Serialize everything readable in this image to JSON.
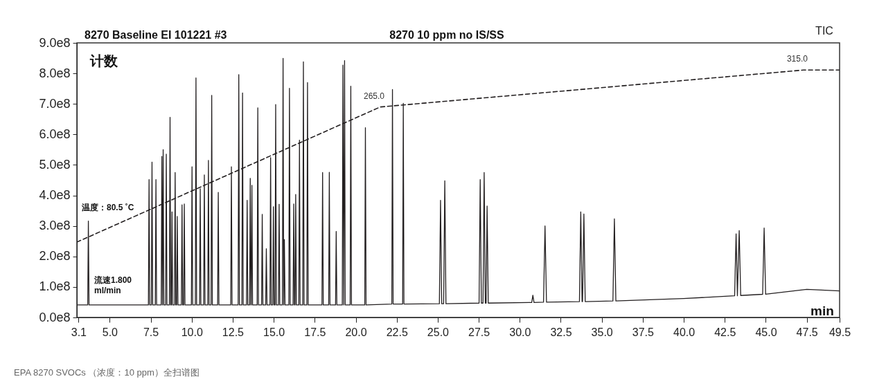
{
  "chart_data": {
    "type": "line",
    "title": "8270 Baseline EI 101221 #3",
    "subtitle": "8270 10 ppm no IS/SS",
    "xlabel": "min",
    "ylabel": "计数",
    "annotations": [
      "TIC",
      "温度：80.5 ˚C",
      "流速1.800 ml/min",
      "EPA 8270 SVOCs （浓度：10 ppm）全扫谱图",
      {
        "text": "265.0",
        "x": 21.5,
        "y": 690000000.0
      },
      {
        "text": "315.0",
        "x": 47.3,
        "y": 811000000.0
      }
    ],
    "xlim": [
      3.0,
      49.5
    ],
    "xticks": [
      3.1,
      {
        "value": 5,
        "label": "5.0"
      },
      7.5,
      {
        "value": 10,
        "label": "10.0"
      },
      12.5,
      {
        "value": 15,
        "label": "15.0"
      },
      17.5,
      {
        "value": 20,
        "label": "20.0"
      },
      22.5,
      {
        "value": 25,
        "label": "25.0"
      },
      27.5,
      {
        "value": 30,
        "label": "30.0"
      },
      32.5,
      {
        "value": 35,
        "label": "35.0"
      },
      37.5,
      {
        "value": 40,
        "label": "40.0"
      },
      42.5,
      {
        "value": 45,
        "label": "45.0"
      },
      47.5,
      49.5
    ],
    "ylim": [
      0,
      900000000.0
    ],
    "yticks": [
      {
        "value": 0,
        "label": "0.0e8"
      },
      {
        "value": 100000000.0,
        "label": "1.0e8"
      },
      {
        "value": 200000000.0,
        "label": "2.0e8"
      },
      {
        "value": 300000000.0,
        "label": "3.0e8"
      },
      {
        "value": 400000000.0,
        "label": "4.0e8"
      },
      {
        "value": 500000000.0,
        "label": "5.0e8"
      },
      {
        "value": 600000000.0,
        "label": "6.0e8"
      },
      {
        "value": 700000000.0,
        "label": "7.0e8"
      },
      {
        "value": 800000000.0,
        "label": "8.0e8"
      },
      {
        "value": 900000000.0,
        "label": "9.0e8"
      }
    ],
    "series": [
      {
        "color": "#231f20",
        "x": [
          3.0,
          3.66,
          3.7,
          3.74,
          7.36,
          7.4,
          7.44,
          7.54,
          7.58,
          7.62,
          7.78,
          7.82,
          7.86,
          8.14,
          8.18,
          8.22,
          8.26,
          8.3,
          8.41,
          8.45,
          8.49,
          8.64,
          8.68,
          8.72,
          8.76,
          8.8,
          8.84,
          8.95,
          8.99,
          9.03,
          9.08,
          9.12,
          9.16,
          9.37,
          9.41,
          9.45,
          9.51,
          9.55,
          9.59,
          9.98,
          10.02,
          10.06,
          10.22,
          10.26,
          10.3,
          10.48,
          10.52,
          10.56,
          10.73,
          10.77,
          10.81,
          10.98,
          11.02,
          11.06,
          11.18,
          11.22,
          11.26,
          11.58,
          11.62,
          11.66,
          12.38,
          12.42,
          12.46,
          12.83,
          12.87,
          12.91,
          13.06,
          13.1,
          13.14,
          13.34,
          13.38,
          13.42,
          13.53,
          13.57,
          13.61,
          13.63,
          13.67,
          13.71,
          13.99,
          14.03,
          14.07,
          14.26,
          14.3,
          14.34,
          14.51,
          14.55,
          14.59,
          14.77,
          14.81,
          14.85,
          14.94,
          14.98,
          15.02,
          15.08,
          15.12,
          15.16,
          15.29,
          15.33,
          15.37,
          15.53,
          15.57,
          15.61,
          15.65,
          15.69,
          15.92,
          15.96,
          16.0,
          16.18,
          16.22,
          16.26,
          16.3,
          16.34,
          16.38,
          16.53,
          16.57,
          16.61,
          16.77,
          16.81,
          16.85,
          17.02,
          17.06,
          17.1,
          17.94,
          17.98,
          18.02,
          18.35,
          18.39,
          18.43,
          18.77,
          18.81,
          18.85,
          19.18,
          19.22,
          19.27,
          19.32,
          19.36,
          19.66,
          19.7,
          19.74,
          20.55,
          20.59,
          20.63,
          22.2,
          22.24,
          22.28,
          22.86,
          22.9,
          22.94,
          25.1,
          25.17,
          25.24,
          25.36,
          25.43,
          25.5,
          27.52,
          27.59,
          27.66,
          27.76,
          27.83,
          27.9,
          27.95,
          28.01,
          28.08,
          30.73,
          30.8,
          30.87,
          31.45,
          31.54,
          31.63,
          33.64,
          33.72,
          33.8,
          33.83,
          33.91,
          33.99,
          35.68,
          35.77,
          35.86,
          40.0,
          43.1,
          43.19,
          43.27,
          43.38,
          43.47,
          44.81,
          44.9,
          44.99,
          47.5,
          49.5
        ],
        "values": [
          41000000.0,
          41000000.0,
          316000000.0,
          41000000.0,
          41000000.0,
          452000000.0,
          41000000.0,
          41000000.0,
          509000000.0,
          41000000.0,
          41000000.0,
          452000000.0,
          41000000.0,
          41000000.0,
          528000000.0,
          41000000.0,
          550000000.0,
          41000000.0,
          41000000.0,
          535000000.0,
          41000000.0,
          41000000.0,
          656000000.0,
          41000000.0,
          41000000.0,
          346000000.0,
          41000000.0,
          41000000.0,
          475000000.0,
          41000000.0,
          41000000.0,
          331000000.0,
          41000000.0,
          41000000.0,
          369000000.0,
          41000000.0,
          41000000.0,
          372000000.0,
          41000000.0,
          41000000.0,
          494000000.0,
          41000000.0,
          41000000.0,
          785000000.0,
          41000000.0,
          41000000.0,
          422000000.0,
          41000000.0,
          41000000.0,
          467000000.0,
          41000000.0,
          41000000.0,
          515000000.0,
          41000000.0,
          41000000.0,
          728000000.0,
          41000000.0,
          41000000.0,
          410000000.0,
          41000000.0,
          41000000.0,
          494000000.0,
          41000000.0,
          41000000.0,
          796000000.0,
          41000000.0,
          41000000.0,
          736000000.0,
          41000000.0,
          41000000.0,
          384000000.0,
          41000000.0,
          41000000.0,
          456000000.0,
          41000000.0,
          41000000.0,
          433000000.0,
          41000000.0,
          41000000.0,
          687000000.0,
          41000000.0,
          41000000.0,
          338000000.0,
          41000000.0,
          41000000.0,
          225000000.0,
          41000000.0,
          41000000.0,
          524000000.0,
          41000000.0,
          41000000.0,
          363000000.0,
          41000000.0,
          41000000.0,
          698000000.0,
          41000000.0,
          41000000.0,
          371000000.0,
          41000000.0,
          41000000.0,
          849000000.0,
          41000000.0,
          255000000.0,
          41000000.0,
          41000000.0,
          751000000.0,
          41000000.0,
          41000000.0,
          372000000.0,
          41000000.0,
          41000000.0,
          403000000.0,
          41000000.0,
          41000000.0,
          581000000.0,
          41000000.0,
          41000000.0,
          838000000.0,
          41000000.0,
          41000000.0,
          770000000.0,
          41000000.0,
          41000000.0,
          475000000.0,
          41000000.0,
          41000000.0,
          476000000.0,
          41000000.0,
          41000000.0,
          282000000.0,
          41000000.0,
          41000000.0,
          827000000.0,
          41000000.0,
          842000000.0,
          41000000.0,
          41000000.0,
          758000000.0,
          41000000.0,
          41000000.0,
          622000000.0,
          41000000.0,
          44000000.0,
          747000000.0,
          44000000.0,
          44000000.0,
          702000000.0,
          44000000.0,
          45000000.0,
          384000000.0,
          45000000.0,
          45000000.0,
          448000000.0,
          45000000.0,
          47000000.0,
          452000000.0,
          47000000.0,
          47000000.0,
          475000000.0,
          47000000.0,
          47000000.0,
          365000000.0,
          47000000.0,
          49000000.0,
          73000000.0,
          49000000.0,
          50000000.0,
          300000000.0,
          50000000.0,
          52000000.0,
          346000000.0,
          52000000.0,
          52000000.0,
          339000000.0,
          52000000.0,
          54000000.0,
          323000000.0,
          54000000.0,
          62000000.0,
          71000000.0,
          274000000.0,
          71000000.0,
          285000000.0,
          72000000.0,
          76000000.0,
          293000000.0,
          76000000.0,
          92000000.0,
          87000000.0
        ]
      },
      {
        "type": "line",
        "line_style": "dashed",
        "color": "#231f20",
        "x": [
          3.0,
          21.5,
          47.3,
          49.5
        ],
        "values": [
          247000000.0,
          690000000.0,
          811000000.0,
          811000000.0
        ]
      }
    ]
  }
}
